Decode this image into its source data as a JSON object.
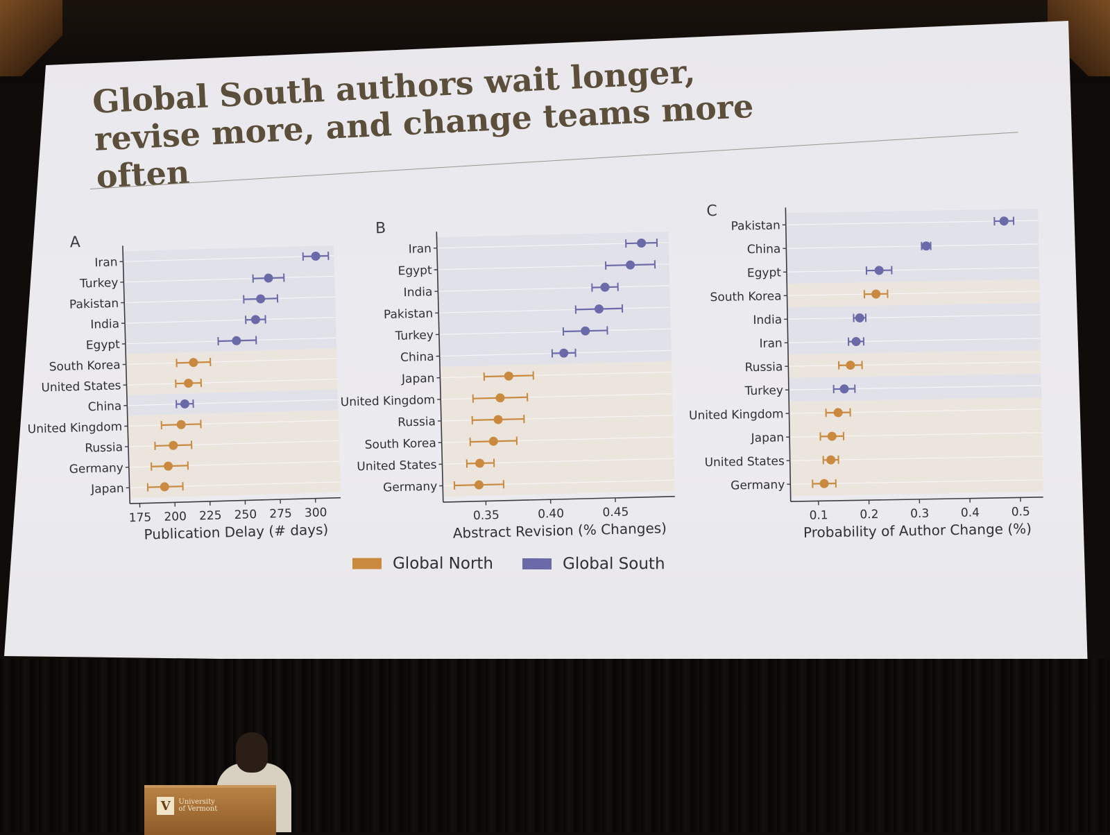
{
  "slide": {
    "title": "Global South authors wait longer, revise more, and change teams more often"
  },
  "colors": {
    "global_north": "#c9893e",
    "global_south": "#6b6aa9",
    "north_band": "#ebe5dd",
    "south_band": "#e1e1ea",
    "title": "#5b4f3b"
  },
  "legend": {
    "items": [
      {
        "label": "Global North",
        "color": "#c9893e"
      },
      {
        "label": "Global South",
        "color": "#6b6aa9"
      }
    ]
  },
  "podium": {
    "logo_mark": "V",
    "logo_text": "University of Vermont"
  },
  "chart_data": [
    {
      "type": "scatter",
      "panel_label": "A",
      "title": "",
      "xlabel": "Publication Delay (# days)",
      "ylabel": "",
      "xlim": [
        168,
        318
      ],
      "xticks": [
        175,
        200,
        225,
        250,
        275,
        300
      ],
      "grid": true,
      "points": [
        {
          "country": "Iran",
          "group": "Global South",
          "value": 305,
          "lo": 296,
          "hi": 314
        },
        {
          "country": "Turkey",
          "group": "Global South",
          "value": 271,
          "lo": 260,
          "hi": 282
        },
        {
          "country": "Pakistan",
          "group": "Global South",
          "value": 265,
          "lo": 253,
          "hi": 277
        },
        {
          "country": "India",
          "group": "Global South",
          "value": 261,
          "lo": 254,
          "hi": 268
        },
        {
          "country": "Egypt",
          "group": "Global South",
          "value": 247,
          "lo": 234,
          "hi": 261
        },
        {
          "country": "South Korea",
          "group": "Global North",
          "value": 216,
          "lo": 204,
          "hi": 228
        },
        {
          "country": "United States",
          "group": "Global North",
          "value": 212,
          "lo": 203,
          "hi": 221
        },
        {
          "country": "China",
          "group": "Global South",
          "value": 209,
          "lo": 203,
          "hi": 215
        },
        {
          "country": "United Kingdom",
          "group": "Global North",
          "value": 206,
          "lo": 192,
          "hi": 220
        },
        {
          "country": "Russia",
          "group": "Global North",
          "value": 200,
          "lo": 187,
          "hi": 213
        },
        {
          "country": "Germany",
          "group": "Global North",
          "value": 196,
          "lo": 184,
          "hi": 210
        },
        {
          "country": "Japan",
          "group": "Global North",
          "value": 193,
          "lo": 181,
          "hi": 206
        }
      ]
    },
    {
      "type": "scatter",
      "panel_label": "B",
      "title": "",
      "xlabel": "Abstract Revision (% Changes)",
      "ylabel": "",
      "xlim": [
        0.317,
        0.496
      ],
      "xticks": [
        "0.35",
        "0.40",
        "0.45"
      ],
      "grid": true,
      "points": [
        {
          "country": "Iran",
          "group": "Global South",
          "value": 0.475,
          "lo": 0.463,
          "hi": 0.487
        },
        {
          "country": "Egypt",
          "group": "Global South",
          "value": 0.466,
          "lo": 0.447,
          "hi": 0.485
        },
        {
          "country": "India",
          "group": "Global South",
          "value": 0.446,
          "lo": 0.436,
          "hi": 0.456
        },
        {
          "country": "Pakistan",
          "group": "Global South",
          "value": 0.441,
          "lo": 0.423,
          "hi": 0.459
        },
        {
          "country": "Turkey",
          "group": "Global South",
          "value": 0.43,
          "lo": 0.413,
          "hi": 0.447
        },
        {
          "country": "China",
          "group": "Global South",
          "value": 0.413,
          "lo": 0.404,
          "hi": 0.422
        },
        {
          "country": "Japan",
          "group": "Global North",
          "value": 0.37,
          "lo": 0.351,
          "hi": 0.389
        },
        {
          "country": "United Kingdom",
          "group": "Global North",
          "value": 0.363,
          "lo": 0.342,
          "hi": 0.384
        },
        {
          "country": "Russia",
          "group": "Global North",
          "value": 0.361,
          "lo": 0.341,
          "hi": 0.381
        },
        {
          "country": "South Korea",
          "group": "Global North",
          "value": 0.357,
          "lo": 0.339,
          "hi": 0.375
        },
        {
          "country": "United States",
          "group": "Global North",
          "value": 0.346,
          "lo": 0.336,
          "hi": 0.357
        },
        {
          "country": "Germany",
          "group": "Global North",
          "value": 0.345,
          "lo": 0.326,
          "hi": 0.364
        }
      ]
    },
    {
      "type": "scatter",
      "panel_label": "C",
      "title": "",
      "xlabel": "Probability of Author Change (%)",
      "ylabel": "",
      "xlim": [
        0.045,
        0.545
      ],
      "xticks": [
        "0.1",
        "0.2",
        "0.3",
        "0.4",
        "0.5"
      ],
      "grid": true,
      "points": [
        {
          "country": "Pakistan",
          "group": "Global South",
          "value": 0.477,
          "lo": 0.458,
          "hi": 0.496
        },
        {
          "country": "China",
          "group": "Global South",
          "value": 0.322,
          "lo": 0.313,
          "hi": 0.331
        },
        {
          "country": "Egypt",
          "group": "Global South",
          "value": 0.228,
          "lo": 0.203,
          "hi": 0.253
        },
        {
          "country": "South Korea",
          "group": "Global North",
          "value": 0.221,
          "lo": 0.198,
          "hi": 0.244
        },
        {
          "country": "India",
          "group": "Global South",
          "value": 0.188,
          "lo": 0.176,
          "hi": 0.2
        },
        {
          "country": "Iran",
          "group": "Global South",
          "value": 0.18,
          "lo": 0.165,
          "hi": 0.195
        },
        {
          "country": "Russia",
          "group": "Global North",
          "value": 0.168,
          "lo": 0.145,
          "hi": 0.191
        },
        {
          "country": "Turkey",
          "group": "Global South",
          "value": 0.155,
          "lo": 0.134,
          "hi": 0.176
        },
        {
          "country": "United Kingdom",
          "group": "Global North",
          "value": 0.142,
          "lo": 0.118,
          "hi": 0.166
        },
        {
          "country": "Japan",
          "group": "Global North",
          "value": 0.129,
          "lo": 0.106,
          "hi": 0.152
        },
        {
          "country": "United States",
          "group": "Global North",
          "value": 0.126,
          "lo": 0.111,
          "hi": 0.141
        },
        {
          "country": "Germany",
          "group": "Global North",
          "value": 0.112,
          "lo": 0.089,
          "hi": 0.135
        }
      ]
    }
  ]
}
